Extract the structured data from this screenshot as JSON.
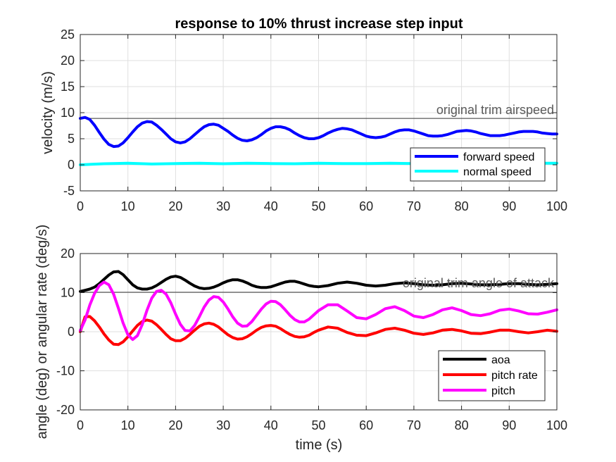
{
  "chart_data": [
    {
      "type": "line",
      "title": "response to 10% thrust increase step input",
      "xlabel": "",
      "ylabel": "velocity (m/s)",
      "xlim": [
        0,
        100
      ],
      "ylim": [
        -5,
        25
      ],
      "xticks": [
        0,
        10,
        20,
        30,
        40,
        50,
        60,
        70,
        80,
        90,
        100
      ],
      "yticks": [
        -5,
        0,
        5,
        10,
        15,
        20,
        25
      ],
      "grid": true,
      "legend_position": "bottom-right",
      "reference_line": {
        "y": 8.9,
        "label": "original trim airspeed"
      },
      "series": [
        {
          "name": "forward speed",
          "color": "#0000ff",
          "x": [
            0,
            1,
            2,
            3,
            4,
            5,
            6,
            7,
            8,
            9,
            10,
            11,
            12,
            13,
            14,
            15,
            16,
            17,
            18,
            19,
            20,
            21,
            22,
            23,
            24,
            25,
            26,
            27,
            28,
            29,
            30,
            31,
            32,
            33,
            34,
            35,
            36,
            37,
            38,
            39,
            40,
            41,
            42,
            43,
            44,
            45,
            46,
            47,
            48,
            49,
            50,
            51,
            52,
            53,
            54,
            55,
            56,
            57,
            58,
            59,
            60,
            61,
            62,
            63,
            64,
            65,
            66,
            67,
            68,
            69,
            70,
            71,
            72,
            73,
            74,
            75,
            76,
            77,
            78,
            79,
            80,
            81,
            82,
            83,
            84,
            85,
            86,
            87,
            88,
            89,
            90,
            91,
            92,
            93,
            94,
            95,
            96,
            97,
            98,
            99,
            100
          ],
          "y": [
            8.9,
            9.1,
            8.7,
            7.6,
            6.2,
            4.9,
            3.9,
            3.5,
            3.6,
            4.2,
            5.2,
            6.3,
            7.3,
            8.0,
            8.3,
            8.2,
            7.6,
            6.8,
            5.9,
            5.0,
            4.4,
            4.2,
            4.4,
            5.0,
            5.8,
            6.6,
            7.3,
            7.7,
            7.8,
            7.6,
            7.0,
            6.4,
            5.7,
            5.1,
            4.7,
            4.6,
            4.8,
            5.2,
            5.8,
            6.5,
            7.0,
            7.3,
            7.3,
            7.1,
            6.7,
            6.1,
            5.6,
            5.2,
            5.0,
            5.0,
            5.2,
            5.6,
            6.1,
            6.5,
            6.8,
            7.0,
            6.9,
            6.7,
            6.3,
            5.9,
            5.5,
            5.3,
            5.2,
            5.3,
            5.5,
            5.9,
            6.3,
            6.6,
            6.7,
            6.7,
            6.5,
            6.2,
            5.9,
            5.6,
            5.5,
            5.5,
            5.6,
            5.8,
            6.1,
            6.4,
            6.5,
            6.6,
            6.5,
            6.3,
            6.0,
            5.8,
            5.6,
            5.6,
            5.6,
            5.7,
            5.9,
            6.1,
            6.3,
            6.4,
            6.4,
            6.4,
            6.3,
            6.1,
            6.0,
            5.9,
            5.9
          ]
        },
        {
          "name": "normal speed",
          "color": "#00ffff",
          "x": [
            0,
            5,
            10,
            15,
            20,
            25,
            30,
            35,
            40,
            45,
            50,
            55,
            60,
            65,
            70,
            75,
            80,
            85,
            90,
            95,
            100
          ],
          "y": [
            0.0,
            0.2,
            0.3,
            0.15,
            0.25,
            0.3,
            0.2,
            0.3,
            0.25,
            0.2,
            0.3,
            0.25,
            0.25,
            0.3,
            0.25,
            0.25,
            0.3,
            0.25,
            0.25,
            0.3,
            0.3
          ]
        }
      ]
    },
    {
      "type": "line",
      "title": "",
      "xlabel": "time (s)",
      "ylabel": "angle (deg) or angular rate (deg/s)",
      "xlim": [
        0,
        100
      ],
      "ylim": [
        -20,
        20
      ],
      "xticks": [
        0,
        10,
        20,
        30,
        40,
        50,
        60,
        70,
        80,
        90,
        100
      ],
      "yticks": [
        -20,
        -10,
        0,
        10,
        20
      ],
      "grid": true,
      "legend_position": "bottom-right",
      "reference_line": {
        "y": 10.1,
        "label": "original trim angle of attack"
      },
      "series": [
        {
          "name": "aoa",
          "color": "#000000",
          "x": [
            0,
            1,
            2,
            3,
            4,
            5,
            6,
            7,
            8,
            9,
            10,
            11,
            12,
            13,
            14,
            15,
            16,
            17,
            18,
            19,
            20,
            21,
            22,
            23,
            24,
            25,
            26,
            27,
            28,
            29,
            30,
            31,
            32,
            33,
            34,
            35,
            36,
            37,
            38,
            39,
            40,
            41,
            42,
            43,
            44,
            45,
            46,
            47,
            48,
            49,
            50,
            52,
            54,
            56,
            58,
            60,
            62,
            64,
            66,
            68,
            70,
            72,
            74,
            76,
            78,
            80,
            82,
            84,
            86,
            88,
            90,
            92,
            94,
            96,
            98,
            100
          ],
          "y": [
            10.3,
            10.6,
            10.9,
            11.4,
            12.3,
            13.4,
            14.5,
            15.3,
            15.4,
            14.6,
            13.3,
            12.0,
            11.2,
            10.9,
            10.9,
            11.2,
            11.8,
            12.6,
            13.4,
            14.0,
            14.2,
            13.9,
            13.2,
            12.4,
            11.7,
            11.2,
            11.0,
            11.1,
            11.4,
            11.9,
            12.5,
            13.0,
            13.3,
            13.3,
            13.0,
            12.5,
            11.9,
            11.5,
            11.3,
            11.3,
            11.5,
            11.9,
            12.3,
            12.7,
            12.9,
            12.9,
            12.6,
            12.2,
            11.8,
            11.6,
            11.5,
            11.8,
            12.4,
            12.7,
            12.4,
            11.9,
            11.7,
            11.9,
            12.3,
            12.5,
            12.3,
            12.0,
            11.9,
            12.0,
            12.3,
            12.4,
            12.2,
            12.0,
            12.0,
            12.1,
            12.3,
            12.3,
            12.1,
            12.0,
            12.1,
            12.3
          ]
        },
        {
          "name": "pitch rate",
          "color": "#ff0000",
          "x": [
            0,
            1,
            2,
            3,
            4,
            5,
            6,
            7,
            8,
            9,
            10,
            11,
            12,
            13,
            14,
            15,
            16,
            17,
            18,
            19,
            20,
            21,
            22,
            23,
            24,
            25,
            26,
            27,
            28,
            29,
            30,
            31,
            32,
            33,
            34,
            35,
            36,
            37,
            38,
            39,
            40,
            41,
            42,
            43,
            44,
            45,
            46,
            47,
            48,
            49,
            50,
            52,
            54,
            56,
            58,
            60,
            62,
            64,
            66,
            68,
            70,
            72,
            74,
            76,
            78,
            80,
            82,
            84,
            86,
            88,
            90,
            92,
            94,
            96,
            98,
            100
          ],
          "y": [
            0.0,
            3.8,
            3.9,
            2.8,
            1.2,
            -0.6,
            -2.1,
            -3.2,
            -3.3,
            -2.6,
            -1.3,
            0.2,
            1.6,
            2.6,
            3.0,
            2.7,
            1.8,
            0.6,
            -0.7,
            -1.8,
            -2.3,
            -2.3,
            -1.7,
            -0.7,
            0.4,
            1.4,
            2.0,
            2.2,
            1.9,
            1.2,
            0.2,
            -0.8,
            -1.5,
            -1.9,
            -1.8,
            -1.3,
            -0.5,
            0.4,
            1.1,
            1.5,
            1.6,
            1.4,
            0.8,
            0.0,
            -0.7,
            -1.2,
            -1.4,
            -1.3,
            -0.9,
            -0.2,
            0.4,
            1.2,
            0.9,
            -0.2,
            -0.9,
            -1.0,
            -0.3,
            0.6,
            0.9,
            0.4,
            -0.4,
            -0.7,
            -0.3,
            0.4,
            0.6,
            0.2,
            -0.4,
            -0.5,
            -0.1,
            0.4,
            0.4,
            0.0,
            -0.3,
            0.0,
            0.4,
            0.1
          ]
        },
        {
          "name": "pitch",
          "color": "#ff00ff",
          "x": [
            0,
            1,
            2,
            3,
            4,
            5,
            6,
            7,
            8,
            9,
            10,
            11,
            12,
            13,
            14,
            15,
            16,
            17,
            18,
            19,
            20,
            21,
            22,
            23,
            24,
            25,
            26,
            27,
            28,
            29,
            30,
            31,
            32,
            33,
            34,
            35,
            36,
            37,
            38,
            39,
            40,
            41,
            42,
            43,
            44,
            45,
            46,
            47,
            48,
            49,
            50,
            52,
            54,
            56,
            58,
            60,
            62,
            64,
            66,
            68,
            70,
            72,
            74,
            76,
            78,
            80,
            82,
            84,
            86,
            88,
            90,
            92,
            94,
            96,
            98,
            100
          ],
          "y": [
            0.3,
            3.0,
            6.8,
            9.8,
            11.8,
            12.7,
            12.0,
            9.6,
            6.0,
            2.2,
            -0.8,
            -2.0,
            -1.0,
            1.8,
            5.5,
            8.6,
            10.3,
            10.6,
            9.6,
            7.4,
            4.5,
            1.9,
            0.3,
            0.2,
            1.6,
            3.9,
            6.3,
            8.1,
            9.0,
            8.8,
            7.6,
            5.8,
            3.8,
            2.2,
            1.4,
            1.5,
            2.6,
            4.2,
            5.8,
            7.1,
            7.8,
            7.7,
            6.9,
            5.6,
            4.2,
            3.1,
            2.5,
            2.5,
            3.2,
            4.3,
            5.4,
            6.9,
            6.9,
            5.3,
            3.6,
            3.3,
            4.4,
            5.9,
            6.4,
            5.4,
            4.0,
            3.6,
            4.4,
            5.6,
            6.1,
            5.4,
            4.4,
            4.1,
            4.6,
            5.5,
            5.8,
            5.3,
            4.6,
            4.5,
            5.0,
            5.6
          ]
        }
      ]
    }
  ]
}
